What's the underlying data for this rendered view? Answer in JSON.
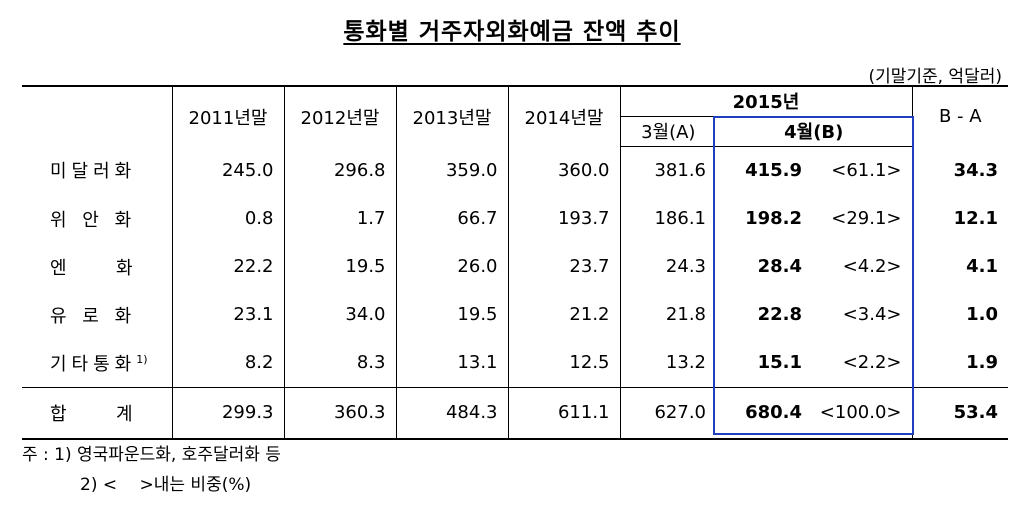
{
  "title": "통화별 거주자외화예금 잔액 추이",
  "unit": "(기말기준, 억달러)",
  "header": {
    "periods": [
      "2011년말",
      "2012년말",
      "2013년말",
      "2014년말"
    ],
    "year2015": "2015년",
    "mar": "3월(A)",
    "apr": "4월(B)",
    "diff": "B - A"
  },
  "rows": [
    {
      "name": "미달러화",
      "sup": "",
      "v": [
        "245.0",
        "296.8",
        "359.0",
        "360.0",
        "381.6"
      ],
      "apr": "415.9",
      "share": "<61.1>",
      "diff": "34.3"
    },
    {
      "name": "위 안 화",
      "sup": "",
      "v": [
        "0.8",
        "1.7",
        "66.7",
        "193.7",
        "186.1"
      ],
      "apr": "198.2",
      "share": "<29.1>",
      "diff": "12.1"
    },
    {
      "name": "엔 　 화",
      "sup": "",
      "v": [
        "22.2",
        "19.5",
        "26.0",
        "23.7",
        "24.3"
      ],
      "apr": "28.4",
      "share": "<4.2>",
      "diff": "4.1"
    },
    {
      "name": "유 로 화",
      "sup": "",
      "v": [
        "23.1",
        "34.0",
        "19.5",
        "21.2",
        "21.8"
      ],
      "apr": "22.8",
      "share": "<3.4>",
      "diff": "1.0"
    },
    {
      "name": "기타통화",
      "sup": "1)",
      "v": [
        "8.2",
        "8.3",
        "13.1",
        "12.5",
        "13.2"
      ],
      "apr": "15.1",
      "share": "<2.2>",
      "diff": "1.9"
    }
  ],
  "total": {
    "name": "합 　 계",
    "v": [
      "299.3",
      "360.3",
      "484.3",
      "611.1",
      "627.0"
    ],
    "apr": "680.4",
    "share": "<100.0>",
    "diff": "53.4"
  },
  "notes": [
    "주 : 1) 영국파운드화, 호주달러화 등",
    "2) <　 >내는 비중(%)"
  ]
}
